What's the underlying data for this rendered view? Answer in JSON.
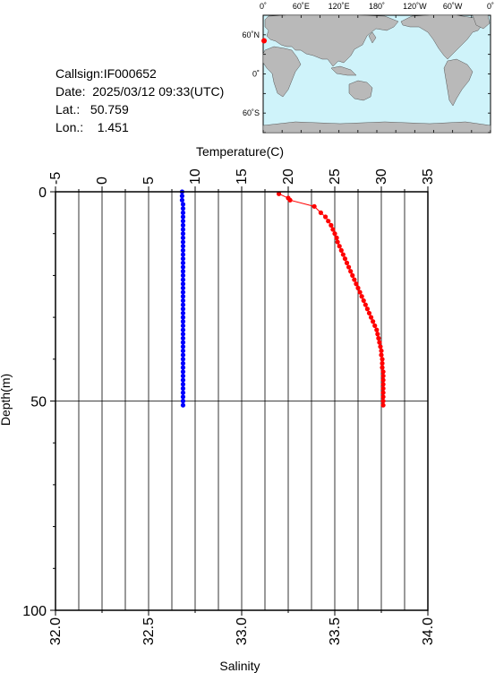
{
  "info": {
    "callsign": "Callsign:IF000652",
    "date": "Date:  2025/03/12 09:33(UTC)",
    "lat": "Lat.:   50.759",
    "lon": "Lon.:    1.451"
  },
  "map": {
    "top_labels": [
      "0˚",
      "60˚E",
      "120˚E",
      "180˚",
      "120˚W",
      "60˚W",
      "0˚"
    ],
    "left_labels": [
      "60˚N",
      "0˚",
      "60˚S"
    ],
    "ocean_color": "#cff3fa",
    "land_color": "#b9b9b9",
    "marker_color": "#ff0000",
    "marker_lat": 50.759,
    "marker_lon": 1.451
  },
  "chart_data": {
    "type": "scatter",
    "title": "",
    "top_axis": {
      "label": "Temperature(C)",
      "range": [
        -5,
        35
      ],
      "ticks": [
        -5,
        0,
        5,
        10,
        15,
        20,
        25,
        30,
        35
      ]
    },
    "bottom_axis": {
      "label": "Salinity",
      "range": [
        32.0,
        34.0
      ],
      "ticks": [
        "32.0",
        "32.5",
        "33.0",
        "33.5",
        "34.0"
      ]
    },
    "left_axis": {
      "label": "Depth(m)",
      "range": [
        0,
        100
      ],
      "ticks": [
        0,
        50,
        100
      ],
      "inverted": true
    },
    "grid": true,
    "series": [
      {
        "name": "Temperature",
        "axis": "top",
        "color": "#ff0000",
        "depth": [
          0.5,
          1.5,
          2.0,
          3.5,
          5,
          6,
          7,
          8,
          9,
          10,
          11,
          12,
          13,
          14,
          15,
          16,
          17,
          18,
          19,
          20,
          21,
          22,
          23,
          24,
          25,
          26,
          27,
          28,
          29,
          30,
          31,
          32,
          33,
          34,
          35,
          36,
          37,
          38,
          39,
          40,
          41,
          42,
          43,
          44,
          45,
          46,
          47,
          48,
          49,
          50,
          51
        ],
        "values": [
          19.0,
          20.0,
          20.2,
          22.8,
          23.5,
          24.0,
          24.3,
          24.6,
          24.8,
          25.0,
          25.2,
          25.3,
          25.5,
          25.7,
          25.9,
          26.1,
          26.3,
          26.5,
          26.7,
          26.9,
          27.1,
          27.3,
          27.5,
          27.7,
          27.9,
          28.1,
          28.3,
          28.5,
          28.7,
          28.9,
          29.1,
          29.3,
          29.5,
          29.6,
          29.7,
          29.8,
          29.9,
          30.0,
          30.0,
          30.1,
          30.1,
          30.1,
          30.2,
          30.2,
          30.2,
          30.2,
          30.2,
          30.2,
          30.2,
          30.2,
          30.2
        ]
      },
      {
        "name": "Salinity",
        "axis": "bottom",
        "color": "#0000ff",
        "depth": [
          0,
          1,
          2,
          3,
          4,
          5,
          6,
          7,
          8,
          9,
          10,
          11,
          12,
          13,
          14,
          15,
          16,
          17,
          18,
          19,
          20,
          21,
          22,
          23,
          24,
          25,
          26,
          27,
          28,
          29,
          30,
          31,
          32,
          33,
          34,
          35,
          36,
          37,
          38,
          39,
          40,
          41,
          42,
          43,
          44,
          45,
          46,
          47,
          48,
          49,
          50,
          51
        ],
        "values": [
          32.68,
          32.68,
          32.68,
          32.685,
          32.685,
          32.685,
          32.685,
          32.685,
          32.685,
          32.685,
          32.685,
          32.685,
          32.685,
          32.685,
          32.685,
          32.685,
          32.685,
          32.685,
          32.685,
          32.685,
          32.685,
          32.685,
          32.685,
          32.685,
          32.685,
          32.685,
          32.685,
          32.685,
          32.685,
          32.685,
          32.685,
          32.685,
          32.685,
          32.685,
          32.685,
          32.685,
          32.685,
          32.685,
          32.685,
          32.685,
          32.685,
          32.685,
          32.685,
          32.685,
          32.685,
          32.685,
          32.685,
          32.685,
          32.685,
          32.685,
          32.685,
          32.685
        ]
      }
    ]
  }
}
